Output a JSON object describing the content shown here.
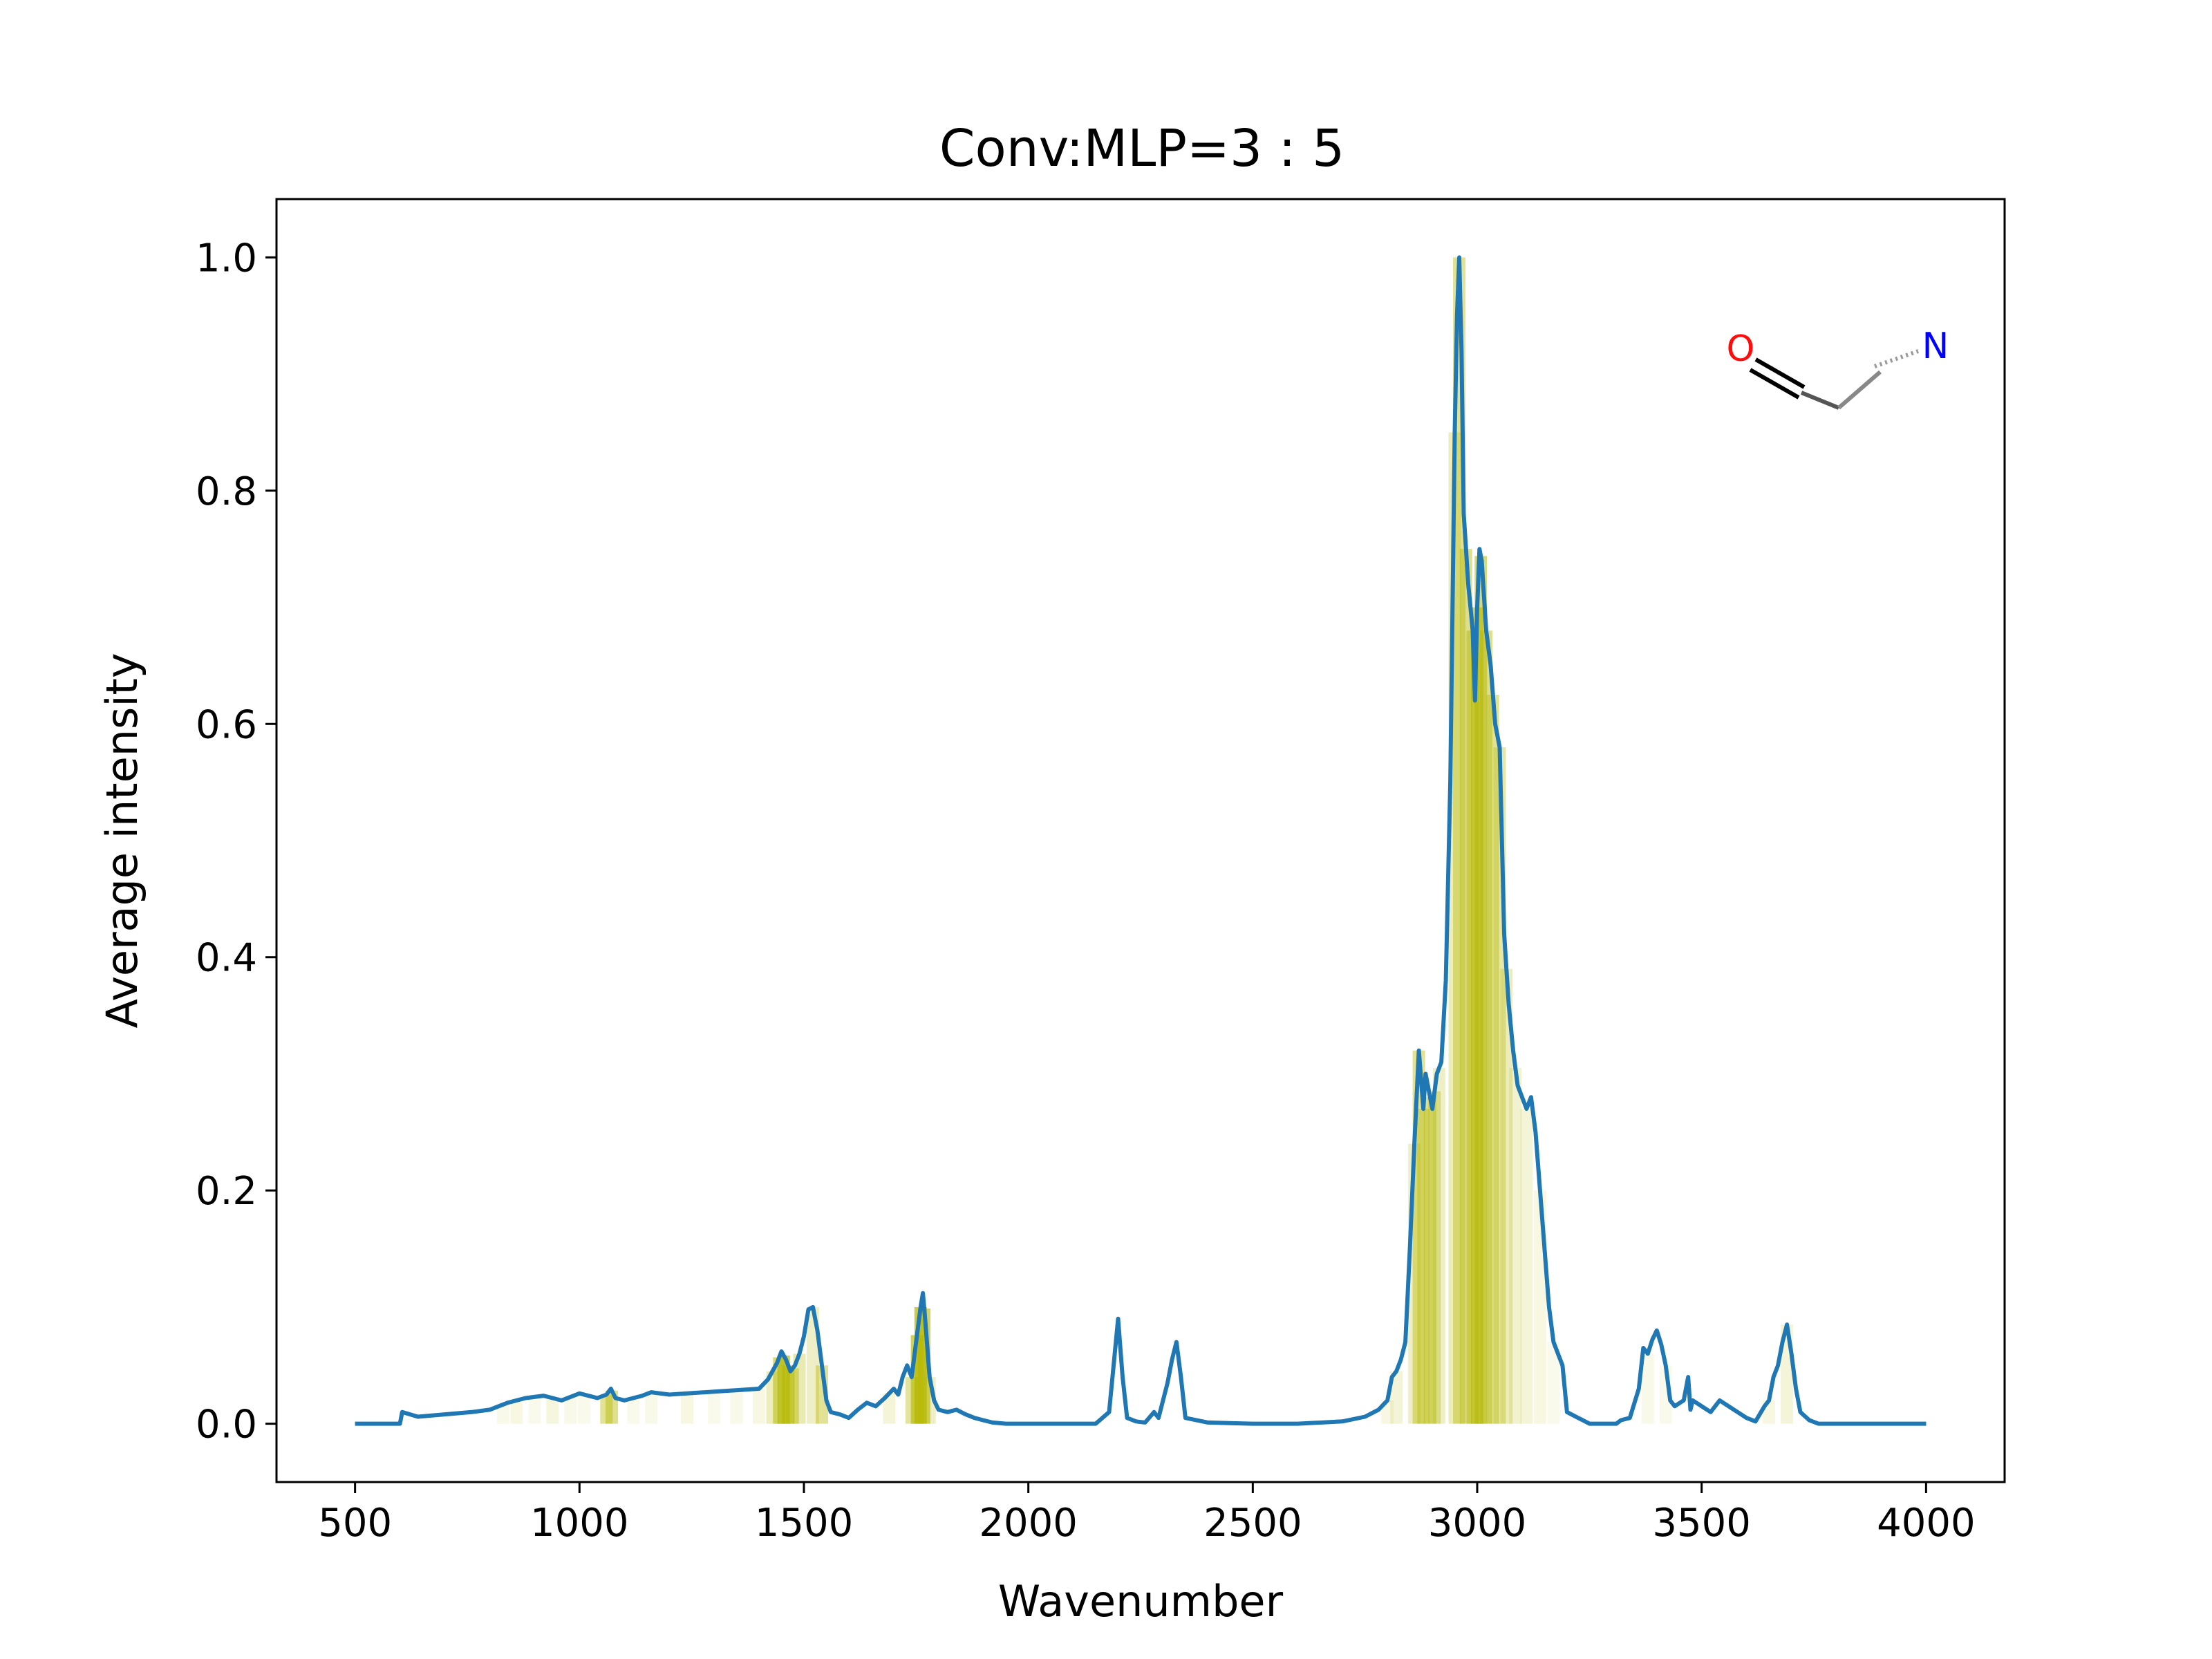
{
  "chart_data": {
    "type": "line",
    "title": "Conv:MLP=3 : 5",
    "xlabel": "Wavenumber",
    "ylabel": "Average intensity",
    "xlim": [
      325,
      4175
    ],
    "ylim": [
      -0.05,
      1.05
    ],
    "xticks": [
      500,
      1000,
      1500,
      2000,
      2500,
      3000,
      3500,
      4000
    ],
    "xtick_labels": [
      "500",
      "1000",
      "1500",
      "2000",
      "2500",
      "3000",
      "3500",
      "4000"
    ],
    "yticks": [
      0.0,
      0.2,
      0.4,
      0.6,
      0.8,
      1.0
    ],
    "ytick_labels": [
      "0.0",
      "0.2",
      "0.4",
      "0.6",
      "0.8",
      "1.0"
    ],
    "grid": false,
    "line_color": "#1f77b4",
    "highlight_color": "#b5b800",
    "series": [
      {
        "x": [
          500,
          600,
          605,
          640,
          700,
          760,
          800,
          840,
          880,
          920,
          960,
          1000,
          1040,
          1060,
          1070,
          1080,
          1100,
          1140,
          1160,
          1200,
          1240,
          1280,
          1320,
          1360,
          1400,
          1420,
          1440,
          1450,
          1460,
          1470,
          1480,
          1490,
          1500,
          1510,
          1520,
          1530,
          1540,
          1550,
          1560,
          1580,
          1600,
          1620,
          1640,
          1660,
          1680,
          1700,
          1710,
          1720,
          1730,
          1740,
          1750,
          1760,
          1765,
          1770,
          1775,
          1780,
          1790,
          1800,
          1820,
          1840,
          1860,
          1880,
          1900,
          1920,
          1950,
          2000,
          2100,
          2150,
          2180,
          2190,
          2200,
          2210,
          2220,
          2240,
          2260,
          2280,
          2290,
          2300,
          2310,
          2320,
          2330,
          2340,
          2350,
          2400,
          2500,
          2600,
          2700,
          2750,
          2780,
          2800,
          2810,
          2820,
          2830,
          2840,
          2850,
          2860,
          2870,
          2880,
          2885,
          2890,
          2895,
          2900,
          2910,
          2920,
          2930,
          2940,
          2945,
          2950,
          2955,
          2960,
          2965,
          2970,
          2975,
          2980,
          2985,
          2990,
          2995,
          3000,
          3005,
          3010,
          3020,
          3030,
          3040,
          3050,
          3060,
          3070,
          3080,
          3090,
          3100,
          3110,
          3120,
          3130,
          3140,
          3150,
          3160,
          3170,
          3180,
          3190,
          3200,
          3250,
          3300,
          3310,
          3320,
          3340,
          3360,
          3370,
          3380,
          3390,
          3400,
          3410,
          3420,
          3430,
          3440,
          3460,
          3470,
          3475,
          3480,
          3500,
          3520,
          3540,
          3560,
          3580,
          3600,
          3620,
          3640,
          3650,
          3660,
          3670,
          3680,
          3690,
          3700,
          3710,
          3720,
          3740,
          3760,
          3800,
          3900,
          4000
        ],
        "y": [
          0.0,
          0.0,
          0.01,
          0.006,
          0.008,
          0.01,
          0.012,
          0.018,
          0.022,
          0.024,
          0.02,
          0.026,
          0.022,
          0.025,
          0.03,
          0.022,
          0.02,
          0.024,
          0.027,
          0.025,
          0.026,
          0.027,
          0.028,
          0.029,
          0.03,
          0.038,
          0.052,
          0.062,
          0.055,
          0.045,
          0.05,
          0.06,
          0.075,
          0.098,
          0.1,
          0.08,
          0.05,
          0.02,
          0.01,
          0.008,
          0.005,
          0.012,
          0.018,
          0.015,
          0.022,
          0.03,
          0.025,
          0.04,
          0.05,
          0.04,
          0.07,
          0.1,
          0.112,
          0.09,
          0.065,
          0.04,
          0.02,
          0.012,
          0.01,
          0.012,
          0.008,
          0.005,
          0.003,
          0.001,
          0.0,
          0.0,
          0.0,
          0.0,
          0.01,
          0.05,
          0.09,
          0.04,
          0.005,
          0.002,
          0.001,
          0.01,
          0.005,
          0.02,
          0.035,
          0.055,
          0.07,
          0.04,
          0.005,
          0.001,
          0.0,
          0.0,
          0.002,
          0.006,
          0.012,
          0.02,
          0.04,
          0.045,
          0.055,
          0.07,
          0.15,
          0.24,
          0.32,
          0.27,
          0.3,
          0.29,
          0.28,
          0.27,
          0.3,
          0.31,
          0.38,
          0.55,
          0.7,
          0.85,
          0.95,
          1.0,
          0.92,
          0.78,
          0.75,
          0.72,
          0.7,
          0.68,
          0.62,
          0.7,
          0.75,
          0.74,
          0.68,
          0.65,
          0.6,
          0.58,
          0.42,
          0.36,
          0.32,
          0.29,
          0.28,
          0.27,
          0.28,
          0.25,
          0.2,
          0.15,
          0.1,
          0.07,
          0.06,
          0.05,
          0.01,
          0.0,
          0.0,
          0.0,
          0.003,
          0.005,
          0.03,
          0.065,
          0.06,
          0.072,
          0.08,
          0.068,
          0.05,
          0.02,
          0.015,
          0.02,
          0.04,
          0.012,
          0.02,
          0.015,
          0.01,
          0.02,
          0.015,
          0.01,
          0.005,
          0.002,
          0.015,
          0.02,
          0.04,
          0.05,
          0.07,
          0.085,
          0.06,
          0.03,
          0.01,
          0.003,
          0.0,
          0.0,
          0.0,
          0.0
        ]
      }
    ],
    "highlight_bands": [
      {
        "x": 830,
        "w": 0.12
      },
      {
        "x": 860,
        "w": 0.15
      },
      {
        "x": 900,
        "w": 0.1
      },
      {
        "x": 940,
        "w": 0.18
      },
      {
        "x": 980,
        "w": 0.12
      },
      {
        "x": 1010,
        "w": 0.1
      },
      {
        "x": 1060,
        "w": 0.55
      },
      {
        "x": 1072,
        "w": 0.6
      },
      {
        "x": 1120,
        "w": 0.1
      },
      {
        "x": 1160,
        "w": 0.12
      },
      {
        "x": 1240,
        "w": 0.15
      },
      {
        "x": 1300,
        "w": 0.1
      },
      {
        "x": 1350,
        "w": 0.12
      },
      {
        "x": 1400,
        "w": 0.15
      },
      {
        "x": 1430,
        "w": 0.35
      },
      {
        "x": 1445,
        "w": 0.7
      },
      {
        "x": 1455,
        "w": 0.9
      },
      {
        "x": 1465,
        "w": 0.8
      },
      {
        "x": 1475,
        "w": 0.6
      },
      {
        "x": 1490,
        "w": 0.4
      },
      {
        "x": 1520,
        "w": 0.3
      },
      {
        "x": 1540,
        "w": 0.55
      },
      {
        "x": 1690,
        "w": 0.2
      },
      {
        "x": 1740,
        "w": 0.5
      },
      {
        "x": 1752,
        "w": 0.85
      },
      {
        "x": 1760,
        "w": 0.95
      },
      {
        "x": 1768,
        "w": 0.8
      },
      {
        "x": 1780,
        "w": 0.3
      },
      {
        "x": 2800,
        "w": 0.15
      },
      {
        "x": 2820,
        "w": 0.2
      },
      {
        "x": 2860,
        "w": 0.3
      },
      {
        "x": 2870,
        "w": 0.55
      },
      {
        "x": 2880,
        "w": 0.5
      },
      {
        "x": 2895,
        "w": 0.6
      },
      {
        "x": 2905,
        "w": 0.45
      },
      {
        "x": 2915,
        "w": 0.3
      },
      {
        "x": 2950,
        "w": 0.35
      },
      {
        "x": 2960,
        "w": 0.55
      },
      {
        "x": 2975,
        "w": 0.6
      },
      {
        "x": 2990,
        "w": 0.65
      },
      {
        "x": 3000,
        "w": 0.8
      },
      {
        "x": 3008,
        "w": 0.7
      },
      {
        "x": 3020,
        "w": 0.6
      },
      {
        "x": 3035,
        "w": 0.55
      },
      {
        "x": 3050,
        "w": 0.45
      },
      {
        "x": 3065,
        "w": 0.35
      },
      {
        "x": 3085,
        "w": 0.25
      },
      {
        "x": 3110,
        "w": 0.2
      },
      {
        "x": 3140,
        "w": 0.15
      },
      {
        "x": 3170,
        "w": 0.1
      },
      {
        "x": 3380,
        "w": 0.12
      },
      {
        "x": 3420,
        "w": 0.1
      },
      {
        "x": 3650,
        "w": 0.15
      },
      {
        "x": 3690,
        "w": 0.2
      }
    ],
    "molecule": {
      "atoms": [
        {
          "symbol": "O",
          "color": "#ff0d0d"
        },
        {
          "symbol": "N",
          "color": "#0000ff"
        }
      ]
    }
  }
}
